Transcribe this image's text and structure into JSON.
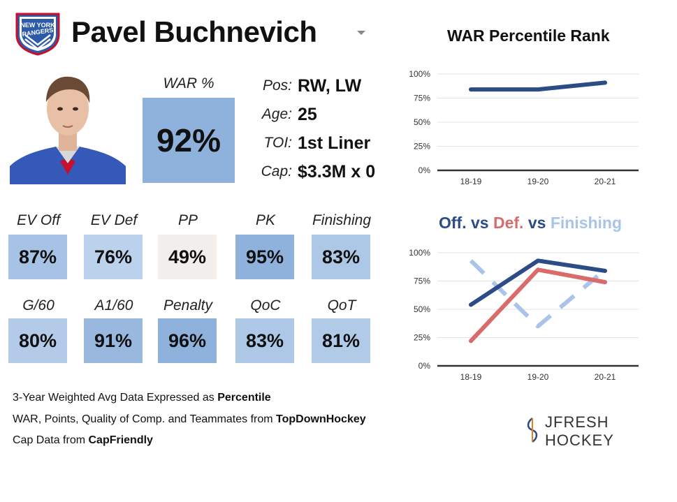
{
  "header": {
    "team_logo_text": [
      "NEW YORK",
      "RANGERS"
    ],
    "player_name": "Pavel Buchnevich"
  },
  "war": {
    "label": "WAR %",
    "value": "92%"
  },
  "info": [
    {
      "label": "Pos:",
      "value": "RW, LW"
    },
    {
      "label": "Age:",
      "value": "25"
    },
    {
      "label": "TOI:",
      "value": "1st Liner"
    },
    {
      "label": "Cap:",
      "value": "$3.3M x 0"
    }
  ],
  "stats_row1": [
    {
      "label": "EV Off",
      "value": "87%",
      "pct": 87,
      "color": "#a6c2e4"
    },
    {
      "label": "EV Def",
      "value": "76%",
      "pct": 76,
      "color": "#bcd1ec"
    },
    {
      "label": "PP",
      "value": "49%",
      "pct": 49,
      "color": "#f1eeeb"
    },
    {
      "label": "PK",
      "value": "95%",
      "pct": 95,
      "color": "#8fb2dd"
    },
    {
      "label": "Finishing",
      "value": "83%",
      "pct": 83,
      "color": "#adc7e7"
    }
  ],
  "stats_row2": [
    {
      "label": "G/60",
      "value": "80%",
      "pct": 80,
      "color": "#b3cbe8"
    },
    {
      "label": "A1/60",
      "value": "91%",
      "pct": 91,
      "color": "#98b8e0"
    },
    {
      "label": "Penalty",
      "value": "96%",
      "pct": 96,
      "color": "#8fb2dd"
    },
    {
      "label": "QoC",
      "value": "83%",
      "pct": 83,
      "color": "#adc7e7"
    },
    {
      "label": "QoT",
      "value": "81%",
      "pct": 81,
      "color": "#b1cae8"
    }
  ],
  "notes": [
    {
      "text": "3-Year Weighted Avg Data Expressed as ",
      "bold": "Percentile"
    },
    {
      "text": "WAR, Points, Quality of Comp. and Teammates from ",
      "bold": "TopDownHockey"
    },
    {
      "text": "Cap Data from ",
      "bold": "CapFriendly"
    }
  ],
  "brand": {
    "text": "JFRESH HOCKEY"
  },
  "colors": {
    "off": "#2b4c84",
    "def": "#d96b6b",
    "finishing": "#a9c4e8",
    "axis": "#333333",
    "grid": "#e4e4e4"
  },
  "chart_data": [
    {
      "type": "line",
      "title": "WAR Percentile Rank",
      "categories": [
        "18-19",
        "19-20",
        "20-21"
      ],
      "yticks": [
        "0%",
        "25%",
        "50%",
        "75%",
        "100%"
      ],
      "ylim": [
        0,
        100
      ],
      "series": [
        {
          "values": [
            84,
            84,
            91
          ],
          "color": "#2b4c84",
          "dashed": false
        }
      ]
    },
    {
      "type": "line",
      "title_parts": [
        {
          "text": "Off.",
          "color": "#2b4c84"
        },
        {
          "text": " vs ",
          "color": "#2b4c84"
        },
        {
          "text": "Def.",
          "color": "#d96b6b"
        },
        {
          "text": " vs ",
          "color": "#2b4c84"
        },
        {
          "text": "Finishing",
          "color": "#a9c4e8"
        }
      ],
      "categories": [
        "18-19",
        "19-20",
        "20-21"
      ],
      "yticks": [
        "0%",
        "25%",
        "50%",
        "75%",
        "100%"
      ],
      "ylim": [
        0,
        100
      ],
      "series": [
        {
          "values": [
            93,
            35,
            85
          ],
          "color": "#a9c4e8",
          "dashed": true
        },
        {
          "values": [
            22,
            85,
            74
          ],
          "color": "#d96b6b",
          "dashed": false
        },
        {
          "values": [
            54,
            93,
            84
          ],
          "color": "#2b4c84",
          "dashed": false
        }
      ]
    }
  ]
}
